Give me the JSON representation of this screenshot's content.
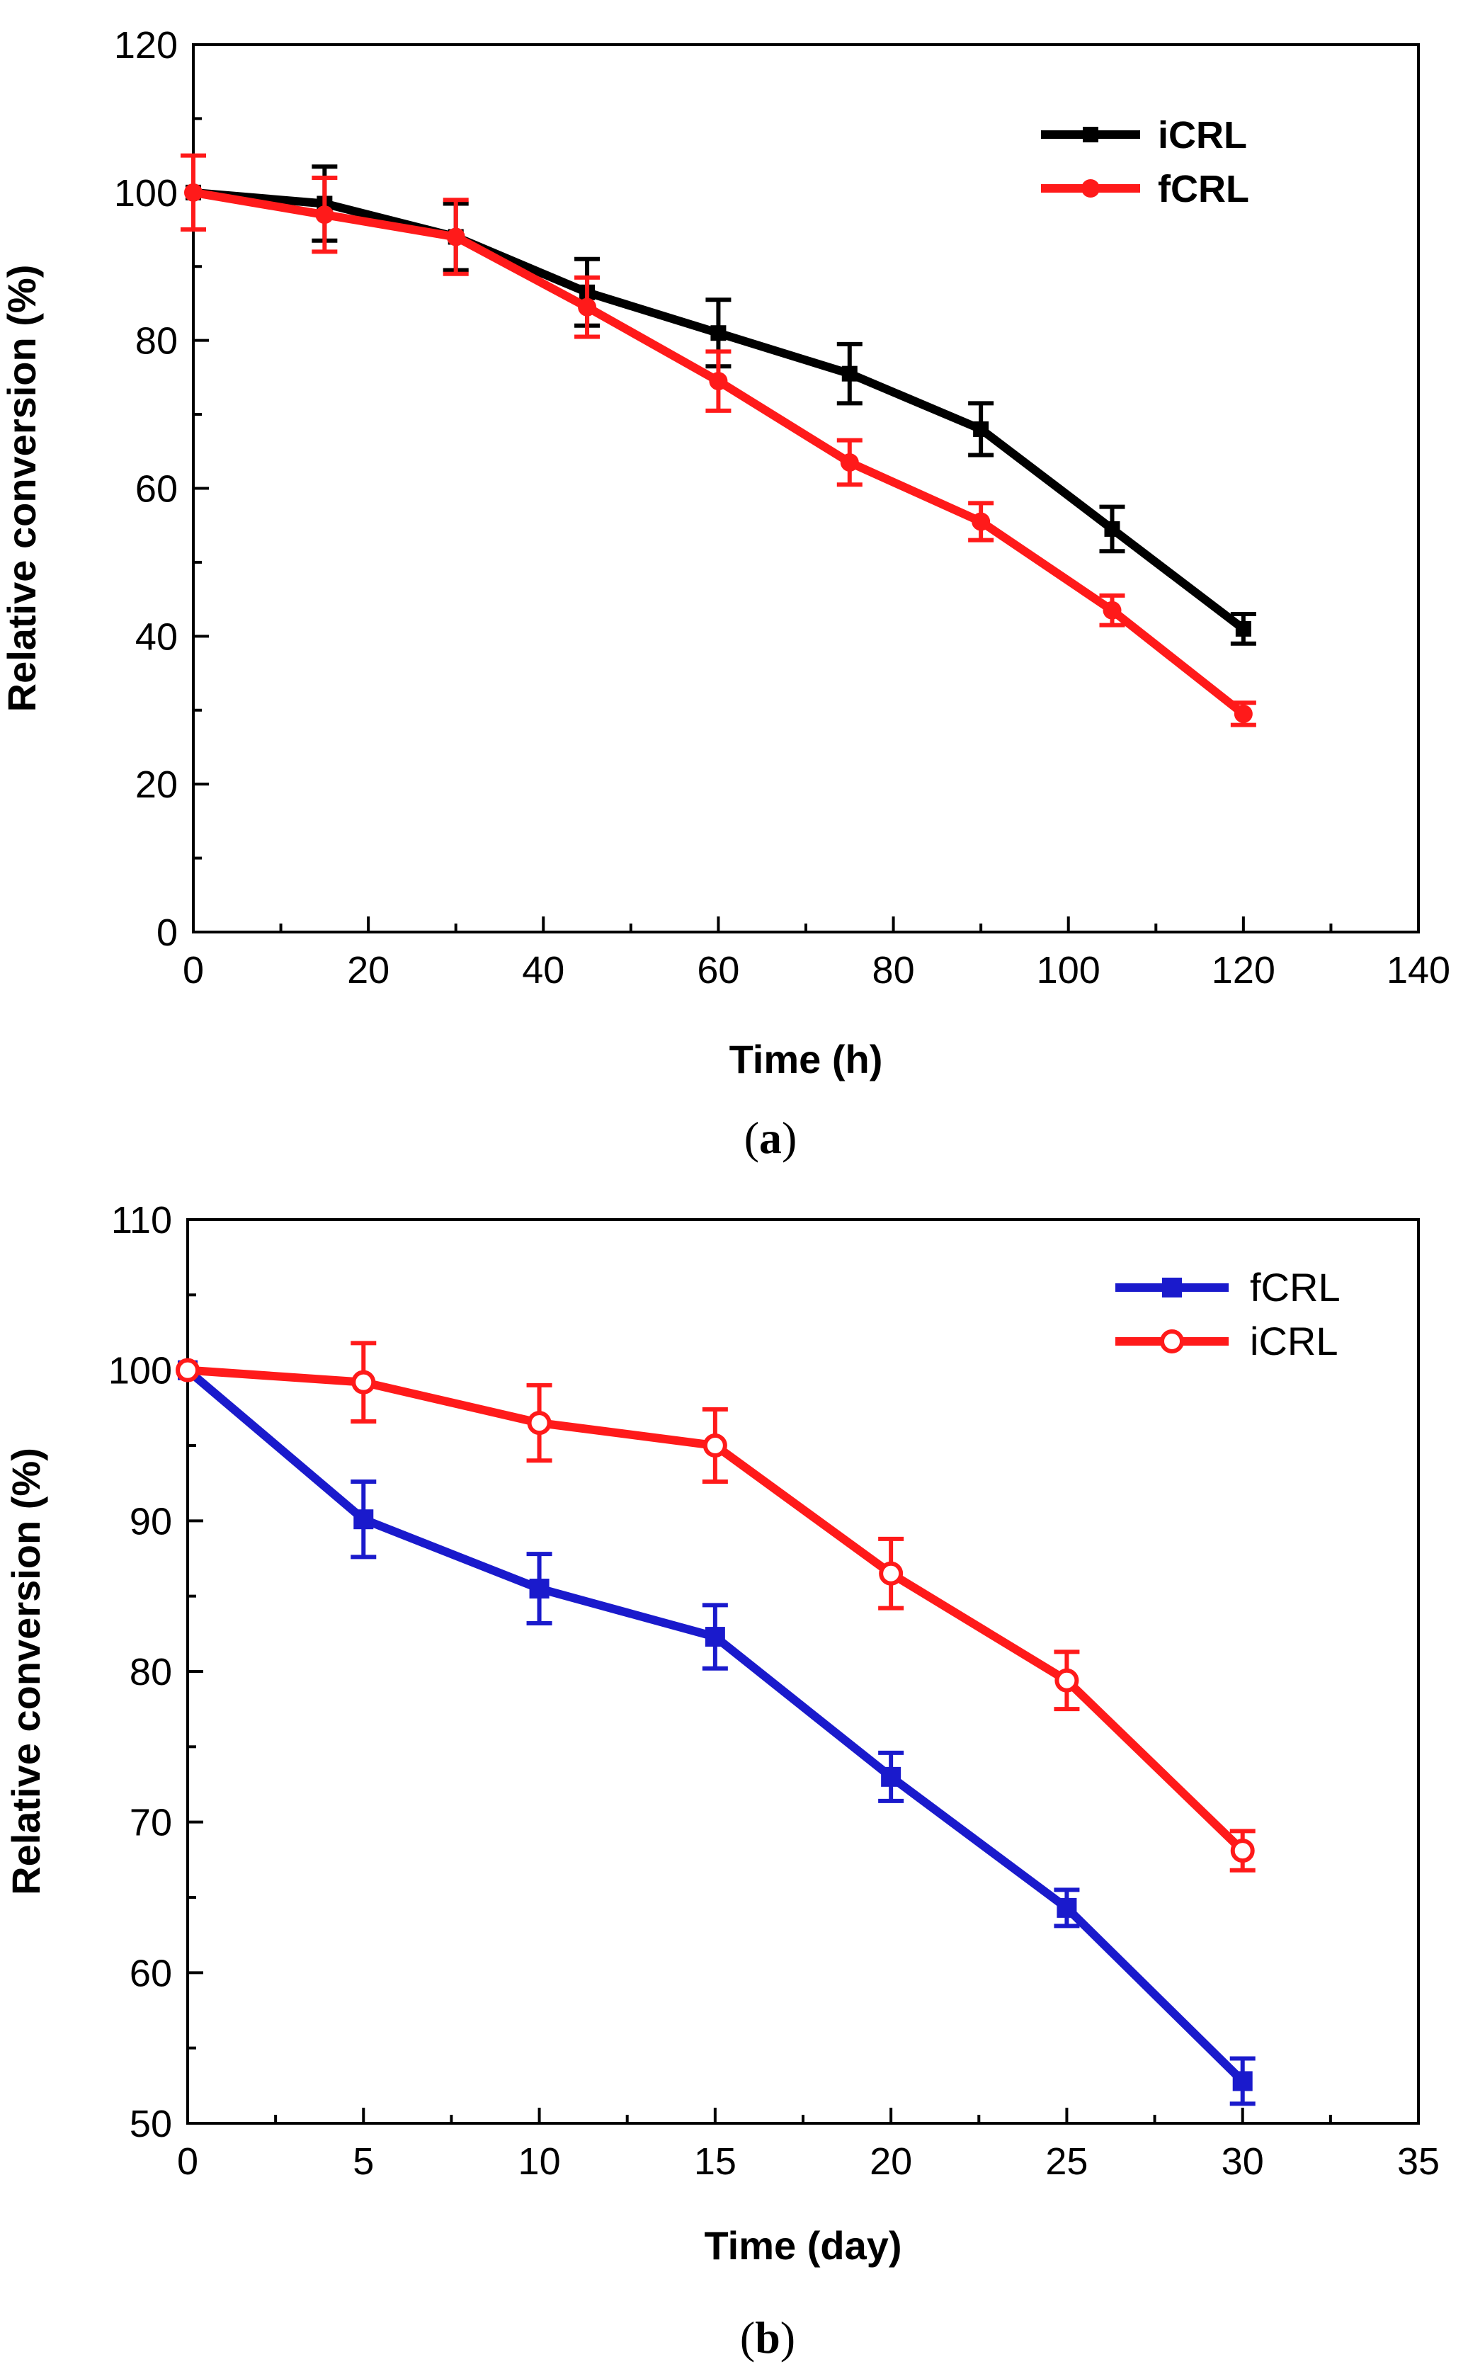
{
  "chart_data": [
    {
      "type": "line",
      "caption_letter": "a",
      "xlabel": "Time (h)",
      "ylabel": "Relative conversion (%)",
      "xlim": [
        0,
        140
      ],
      "ylim": [
        0,
        120
      ],
      "xticks": [
        0,
        20,
        40,
        60,
        80,
        100,
        120,
        140
      ],
      "yticks": [
        0,
        20,
        40,
        60,
        80,
        100,
        120
      ],
      "grid": false,
      "legend_position": "top-right",
      "series": [
        {
          "name": "iCRL",
          "color": "#000000",
          "marker": "square",
          "x": [
            0,
            15,
            30,
            45,
            60,
            75,
            90,
            105,
            120
          ],
          "values": [
            100,
            98.5,
            94,
            86.5,
            81,
            75.5,
            68,
            54.5,
            41
          ],
          "errors": [
            0,
            5,
            4.5,
            4.5,
            4.5,
            4,
            3.5,
            3,
            2
          ]
        },
        {
          "name": "fCRL",
          "color": "#ff1a1a",
          "marker": "circle",
          "x": [
            0,
            15,
            30,
            45,
            60,
            75,
            90,
            105,
            120
          ],
          "values": [
            100,
            97,
            94,
            84.5,
            74.5,
            63.5,
            55.5,
            43.5,
            29.5
          ],
          "errors": [
            5,
            5,
            5,
            4,
            4,
            3,
            2.5,
            2,
            1.5
          ]
        }
      ]
    },
    {
      "type": "line",
      "caption_letter": "b",
      "xlabel": "Time (day)",
      "ylabel": "Relative conversion (%)",
      "xlim": [
        0,
        35
      ],
      "ylim": [
        50,
        110
      ],
      "xticks": [
        0,
        5,
        10,
        15,
        20,
        25,
        30,
        35
      ],
      "yticks": [
        50,
        60,
        70,
        80,
        90,
        100,
        110
      ],
      "grid": false,
      "legend_position": "top-right",
      "series": [
        {
          "name": "fCRL",
          "color": "#1a1acc",
          "marker": "square",
          "x": [
            0,
            5,
            10,
            15,
            20,
            25,
            30
          ],
          "values": [
            100,
            90.1,
            85.5,
            82.3,
            73,
            64.3,
            52.8
          ],
          "errors": [
            0,
            2.5,
            2.3,
            2.1,
            1.6,
            1.2,
            1.5
          ]
        },
        {
          "name": "iCRL",
          "color": "#ff1a1a",
          "marker": "open-circle",
          "x": [
            0,
            5,
            10,
            15,
            20,
            25,
            30
          ],
          "values": [
            100,
            99.2,
            96.5,
            95,
            86.5,
            79.4,
            68.1
          ],
          "errors": [
            0,
            2.6,
            2.5,
            2.4,
            2.3,
            1.9,
            1.3
          ]
        }
      ]
    }
  ]
}
